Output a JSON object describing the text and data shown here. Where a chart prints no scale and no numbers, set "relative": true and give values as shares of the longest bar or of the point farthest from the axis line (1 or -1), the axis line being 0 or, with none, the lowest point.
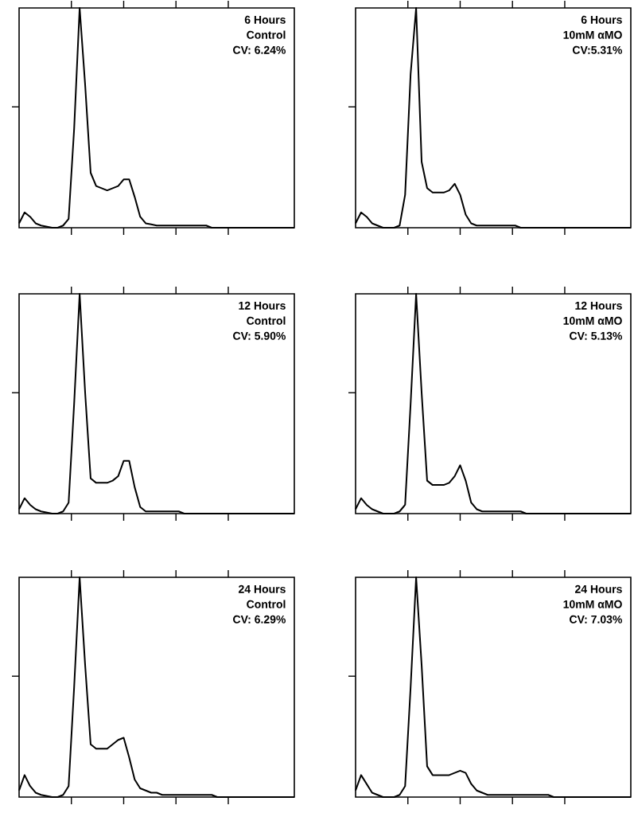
{
  "chart_data": [
    {
      "type": "line",
      "title": "6 Hours",
      "subtitle": "Control",
      "annotations": [
        "CV: 6.24%"
      ],
      "relative": true,
      "categories": [
        null,
        null,
        null,
        null,
        null,
        null,
        null,
        null,
        null,
        null,
        null,
        null,
        null,
        null,
        null,
        null,
        null,
        null,
        null,
        null,
        null,
        null,
        null,
        null,
        null,
        null,
        null,
        null,
        null,
        null,
        null,
        null,
        null,
        null,
        null,
        null,
        null,
        null,
        null,
        null,
        null,
        null,
        null,
        null,
        null,
        null,
        null,
        null,
        null,
        null,
        null
      ],
      "series": [
        {
          "color": "#000000",
          "values": [
            0.02,
            0.07,
            0.05,
            0.02,
            0.01,
            0.005,
            0,
            0,
            0.01,
            0.04,
            0.45,
            1,
            0.65,
            0.25,
            0.19,
            0.18,
            0.17,
            0.18,
            0.19,
            0.22,
            0.22,
            0.14,
            0.05,
            0.02,
            0.015,
            0.01,
            0.01,
            0.01,
            0.01,
            0.01,
            0.01,
            0.01,
            0.01,
            0.01,
            0.01,
            0,
            0,
            0,
            0,
            0,
            0,
            0,
            0,
            0,
            0,
            0,
            0,
            0,
            0,
            0,
            0
          ]
        }
      ]
    },
    {
      "type": "line",
      "title": "6 Hours",
      "subtitle": "10mM αMO",
      "annotations": [
        "CV:5.31%"
      ],
      "relative": true,
      "categories": [
        null,
        null,
        null,
        null,
        null,
        null,
        null,
        null,
        null,
        null,
        null,
        null,
        null,
        null,
        null,
        null,
        null,
        null,
        null,
        null,
        null,
        null,
        null,
        null,
        null,
        null,
        null,
        null,
        null,
        null,
        null,
        null,
        null,
        null,
        null,
        null,
        null,
        null,
        null,
        null,
        null,
        null,
        null,
        null,
        null,
        null,
        null,
        null,
        null,
        null,
        null
      ],
      "series": [
        {
          "color": "#000000",
          "values": [
            0.02,
            0.07,
            0.05,
            0.02,
            0.01,
            0,
            0,
            0,
            0.01,
            0.15,
            0.7,
            1,
            0.3,
            0.18,
            0.16,
            0.16,
            0.16,
            0.17,
            0.2,
            0.15,
            0.06,
            0.02,
            0.01,
            0.01,
            0.01,
            0.01,
            0.01,
            0.01,
            0.01,
            0.01,
            0,
            0,
            0,
            0,
            0,
            0,
            0,
            0,
            0,
            0,
            0,
            0,
            0,
            0,
            0,
            0,
            0,
            0,
            0,
            0,
            0
          ]
        }
      ]
    },
    {
      "type": "line",
      "title": "12 Hours",
      "subtitle": "Control",
      "annotations": [
        "CV: 5.90%"
      ],
      "relative": true,
      "categories": [
        null,
        null,
        null,
        null,
        null,
        null,
        null,
        null,
        null,
        null,
        null,
        null,
        null,
        null,
        null,
        null,
        null,
        null,
        null,
        null,
        null,
        null,
        null,
        null,
        null,
        null,
        null,
        null,
        null,
        null,
        null,
        null,
        null,
        null,
        null,
        null,
        null,
        null,
        null,
        null,
        null,
        null,
        null,
        null,
        null,
        null,
        null,
        null,
        null,
        null,
        null
      ],
      "series": [
        {
          "color": "#000000",
          "values": [
            0.02,
            0.07,
            0.04,
            0.02,
            0.01,
            0.005,
            0,
            0,
            0.01,
            0.05,
            0.5,
            1,
            0.55,
            0.16,
            0.14,
            0.14,
            0.14,
            0.15,
            0.17,
            0.24,
            0.24,
            0.12,
            0.03,
            0.01,
            0.01,
            0.01,
            0.01,
            0.01,
            0.01,
            0.01,
            0,
            0,
            0,
            0,
            0,
            0,
            0,
            0,
            0,
            0,
            0,
            0,
            0,
            0,
            0,
            0,
            0,
            0,
            0,
            0,
            0
          ]
        }
      ]
    },
    {
      "type": "line",
      "title": "12 Hours",
      "subtitle": "10mM αMO",
      "annotations": [
        "CV: 5.13%"
      ],
      "relative": true,
      "categories": [
        null,
        null,
        null,
        null,
        null,
        null,
        null,
        null,
        null,
        null,
        null,
        null,
        null,
        null,
        null,
        null,
        null,
        null,
        null,
        null,
        null,
        null,
        null,
        null,
        null,
        null,
        null,
        null,
        null,
        null,
        null,
        null,
        null,
        null,
        null,
        null,
        null,
        null,
        null,
        null,
        null,
        null,
        null,
        null,
        null,
        null,
        null,
        null,
        null,
        null,
        null
      ],
      "series": [
        {
          "color": "#000000",
          "values": [
            0.02,
            0.07,
            0.04,
            0.02,
            0.01,
            0,
            0,
            0,
            0.01,
            0.04,
            0.5,
            1,
            0.55,
            0.15,
            0.13,
            0.13,
            0.13,
            0.14,
            0.17,
            0.22,
            0.15,
            0.05,
            0.02,
            0.01,
            0.01,
            0.01,
            0.01,
            0.01,
            0.01,
            0.01,
            0.01,
            0,
            0,
            0,
            0,
            0,
            0,
            0,
            0,
            0,
            0,
            0,
            0,
            0,
            0,
            0,
            0,
            0,
            0,
            0,
            0
          ]
        }
      ]
    },
    {
      "type": "line",
      "title": "24 Hours",
      "subtitle": "Control",
      "annotations": [
        "CV: 6.29%"
      ],
      "relative": true,
      "categories": [
        null,
        null,
        null,
        null,
        null,
        null,
        null,
        null,
        null,
        null,
        null,
        null,
        null,
        null,
        null,
        null,
        null,
        null,
        null,
        null,
        null,
        null,
        null,
        null,
        null,
        null,
        null,
        null,
        null,
        null,
        null,
        null,
        null,
        null,
        null,
        null,
        null,
        null,
        null,
        null,
        null,
        null,
        null,
        null,
        null,
        null,
        null,
        null,
        null,
        null,
        null
      ],
      "series": [
        {
          "color": "#000000",
          "values": [
            0.03,
            0.1,
            0.05,
            0.02,
            0.01,
            0.005,
            0,
            0,
            0.01,
            0.05,
            0.5,
            1,
            0.6,
            0.24,
            0.22,
            0.22,
            0.22,
            0.24,
            0.26,
            0.27,
            0.18,
            0.08,
            0.04,
            0.03,
            0.02,
            0.02,
            0.01,
            0.01,
            0.01,
            0.01,
            0.01,
            0.01,
            0.01,
            0.01,
            0.01,
            0.01,
            0,
            0,
            0,
            0,
            0,
            0,
            0,
            0,
            0,
            0,
            0,
            0,
            0,
            0,
            0
          ]
        }
      ]
    },
    {
      "type": "line",
      "title": "24 Hours",
      "subtitle": "10mM αMO",
      "annotations": [
        "CV: 7.03%"
      ],
      "relative": true,
      "categories": [
        null,
        null,
        null,
        null,
        null,
        null,
        null,
        null,
        null,
        null,
        null,
        null,
        null,
        null,
        null,
        null,
        null,
        null,
        null,
        null,
        null,
        null,
        null,
        null,
        null,
        null,
        null,
        null,
        null,
        null,
        null,
        null,
        null,
        null,
        null,
        null,
        null,
        null,
        null,
        null,
        null,
        null,
        null,
        null,
        null,
        null,
        null,
        null,
        null,
        null,
        null
      ],
      "series": [
        {
          "color": "#000000",
          "values": [
            0.03,
            0.1,
            0.06,
            0.02,
            0.01,
            0,
            0,
            0,
            0.01,
            0.05,
            0.5,
            1,
            0.6,
            0.14,
            0.1,
            0.1,
            0.1,
            0.1,
            0.11,
            0.12,
            0.11,
            0.06,
            0.03,
            0.02,
            0.01,
            0.01,
            0.01,
            0.01,
            0.01,
            0.01,
            0.01,
            0.01,
            0.01,
            0.01,
            0.01,
            0.01,
            0,
            0,
            0,
            0,
            0,
            0,
            0,
            0,
            0,
            0,
            0,
            0,
            0,
            0,
            0
          ]
        }
      ]
    }
  ]
}
